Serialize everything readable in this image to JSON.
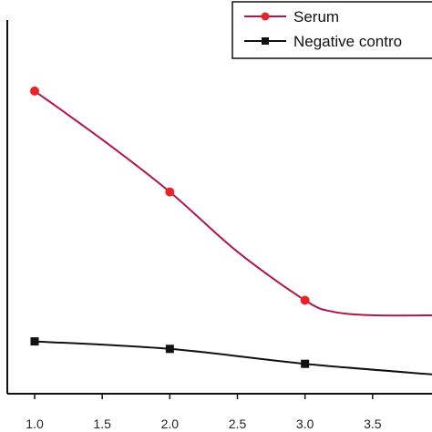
{
  "chart_data": {
    "type": "line",
    "x": [
      1.0,
      2.0,
      3.0,
      4.0
    ],
    "xlim": [
      0.8,
      4.0
    ],
    "ylim": [
      0,
      1
    ],
    "x_ticks": [
      1.0,
      1.5,
      2.0,
      2.5,
      3.0,
      3.5
    ],
    "x_tick_labels": [
      "1.0",
      "1.5",
      "2.0",
      "2.5",
      "3.0",
      "3.5"
    ],
    "grid": false,
    "legend_position": "top-right",
    "series": [
      {
        "name": "Serum",
        "color": "#b0154a",
        "marker_color": "#e8232a",
        "marker": "circle",
        "curve_x": [
          1.0,
          1.5,
          2.0,
          2.5,
          3.0,
          3.2,
          3.5,
          4.0
        ],
        "curve_y": [
          0.81,
          0.68,
          0.54,
          0.38,
          0.25,
          0.22,
          0.21,
          0.21
        ],
        "marker_x": [
          1.0,
          2.0,
          3.0
        ],
        "marker_y": [
          0.81,
          0.54,
          0.25
        ]
      },
      {
        "name": "Negative contro",
        "color": "#111111",
        "marker_color": "#111111",
        "marker": "square",
        "curve_x": [
          1.0,
          2.0,
          3.0,
          4.0
        ],
        "curve_y": [
          0.14,
          0.12,
          0.08,
          0.05
        ],
        "marker_x": [
          1.0,
          2.0,
          3.0
        ],
        "marker_y": [
          0.14,
          0.12,
          0.08
        ]
      }
    ]
  }
}
